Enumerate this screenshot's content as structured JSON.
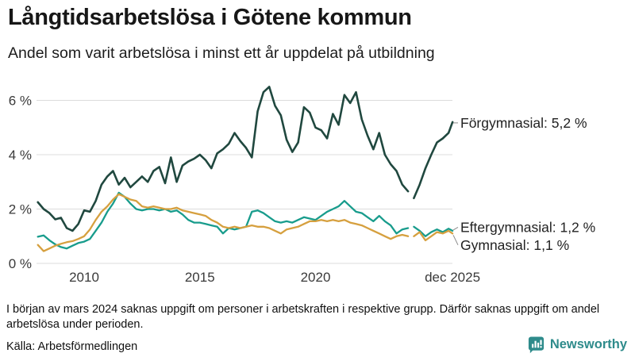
{
  "header": {
    "title": "Långtidsarbetslösa i Götene kommun",
    "subtitle": "Andel som varit arbetslösa i minst ett år uppdelat på utbildning"
  },
  "chart_data": {
    "type": "line",
    "title": "Långtidsarbetslösa i Götene kommun",
    "subtitle": "Andel som varit arbetslösa i minst ett år uppdelat på utbildning",
    "unit": "%",
    "grid": "horizontal",
    "legend_position": "end-of-line-labels",
    "xlim": [
      2007.9,
      2026.1
    ],
    "ylim": [
      0,
      6.9
    ],
    "y_ticks": [
      {
        "value": 0,
        "label": "0 %"
      },
      {
        "value": 2,
        "label": "2 %"
      },
      {
        "value": 4,
        "label": "4 %"
      },
      {
        "value": 6,
        "label": "6 %"
      }
    ],
    "x_ticks": [
      {
        "year": 2010,
        "label": "2010"
      },
      {
        "year": 2015,
        "label": "2015"
      },
      {
        "year": 2020,
        "label": "2020"
      },
      {
        "year": 2025.92,
        "label": "dec 2025"
      }
    ],
    "data_gap": {
      "at": 2024.08,
      "reason": "uppgift saknas mars 2024"
    },
    "x": [
      2008,
      2008.25,
      2008.5,
      2008.75,
      2009,
      2009.25,
      2009.5,
      2009.75,
      2010,
      2010.25,
      2010.5,
      2010.75,
      2011,
      2011.25,
      2011.5,
      2011.75,
      2012,
      2012.25,
      2012.5,
      2012.75,
      2013,
      2013.25,
      2013.5,
      2013.75,
      2014,
      2014.25,
      2014.5,
      2014.75,
      2015,
      2015.25,
      2015.5,
      2015.75,
      2016,
      2016.25,
      2016.5,
      2016.75,
      2017,
      2017.25,
      2017.5,
      2017.75,
      2018,
      2018.25,
      2018.5,
      2018.75,
      2019,
      2019.25,
      2019.5,
      2019.75,
      2020,
      2020.25,
      2020.5,
      2020.75,
      2021,
      2021.25,
      2021.5,
      2021.75,
      2022,
      2022.25,
      2022.5,
      2022.75,
      2023,
      2023.25,
      2023.5,
      2023.75,
      2024,
      2024.08,
      2024.25,
      2024.5,
      2024.75,
      2025,
      2025.25,
      2025.5,
      2025.75,
      2025.92
    ],
    "series": [
      {
        "id": "forgymnasial",
        "name": "Förgymnasial",
        "end_label": "Förgymnasial: 5,2 %",
        "final_value": "5,2 %",
        "color": "#20483f",
        "values": [
          2.25,
          2.0,
          1.85,
          1.62,
          1.68,
          1.3,
          1.2,
          1.45,
          1.95,
          1.9,
          2.3,
          2.9,
          3.2,
          3.4,
          2.9,
          3.15,
          2.8,
          3.0,
          3.2,
          3.0,
          3.4,
          3.55,
          2.95,
          3.9,
          3.0,
          3.6,
          3.75,
          3.85,
          4.0,
          3.8,
          3.5,
          4.05,
          4.2,
          4.4,
          4.8,
          4.5,
          4.25,
          3.9,
          5.6,
          6.3,
          6.5,
          5.8,
          5.45,
          4.55,
          4.1,
          4.45,
          5.75,
          5.55,
          5.0,
          4.9,
          4.6,
          5.5,
          5.1,
          6.2,
          5.9,
          6.3,
          5.3,
          4.7,
          4.2,
          4.8,
          4.0,
          3.65,
          3.4,
          2.9,
          2.65,
          null,
          2.4,
          2.9,
          3.5,
          4.0,
          4.45,
          4.6,
          4.8,
          5.2
        ]
      },
      {
        "id": "eftergymnasial",
        "name": "Eftergymnasial",
        "end_label": "Eftergymnasial: 1,2 %",
        "final_value": "1,2 %",
        "color": "#189c8c",
        "values": [
          0.98,
          1.03,
          0.85,
          0.7,
          0.6,
          0.55,
          0.65,
          0.75,
          0.8,
          0.9,
          1.2,
          1.5,
          1.9,
          2.2,
          2.6,
          2.45,
          2.2,
          2.0,
          1.95,
          2.0,
          2.0,
          1.95,
          2.0,
          1.9,
          1.95,
          1.8,
          1.6,
          1.5,
          1.5,
          1.45,
          1.4,
          1.35,
          1.1,
          1.3,
          1.25,
          1.3,
          1.35,
          1.9,
          1.95,
          1.85,
          1.7,
          1.55,
          1.5,
          1.55,
          1.5,
          1.6,
          1.7,
          1.65,
          1.6,
          1.75,
          1.9,
          2.0,
          2.1,
          2.3,
          2.1,
          1.9,
          1.85,
          1.7,
          1.55,
          1.75,
          1.55,
          1.4,
          1.1,
          1.25,
          1.3,
          null,
          1.35,
          1.2,
          1.0,
          1.15,
          1.25,
          1.15,
          1.28,
          1.2
        ]
      },
      {
        "id": "gymnasial",
        "name": "Gymnasial",
        "end_label": "Gymnasial: 1,1 %",
        "final_value": "1,1 %",
        "color": "#d6a03f",
        "values": [
          0.68,
          0.45,
          0.55,
          0.65,
          0.72,
          0.78,
          0.82,
          0.9,
          1.0,
          1.25,
          1.6,
          1.9,
          2.1,
          2.35,
          2.55,
          2.45,
          2.35,
          2.3,
          2.1,
          2.05,
          2.1,
          2.05,
          2.0,
          2.0,
          2.05,
          1.95,
          1.9,
          1.85,
          1.8,
          1.75,
          1.6,
          1.5,
          1.35,
          1.3,
          1.35,
          1.3,
          1.35,
          1.4,
          1.35,
          1.35,
          1.3,
          1.2,
          1.1,
          1.25,
          1.3,
          1.35,
          1.45,
          1.55,
          1.55,
          1.6,
          1.55,
          1.6,
          1.55,
          1.6,
          1.5,
          1.45,
          1.4,
          1.3,
          1.2,
          1.1,
          1.0,
          0.9,
          1.0,
          1.05,
          1.0,
          null,
          1.0,
          1.15,
          0.85,
          1.0,
          1.15,
          1.1,
          1.2,
          1.1
        ]
      }
    ]
  },
  "footnote": "I början av mars 2024 saknas uppgift om personer i arbetskraften i respektive grupp. Därför saknas uppgift om andel arbetslösa under perioden.",
  "source": "Källa: Arbetsförmedlingen",
  "branding": {
    "name": "Newsworthy",
    "color": "#2e8b8b"
  },
  "colors": {
    "grid": "#dcdcdc",
    "axis_text": "#3a3a3a",
    "label_text": "#222222",
    "leader": "#8a8a8a"
  }
}
